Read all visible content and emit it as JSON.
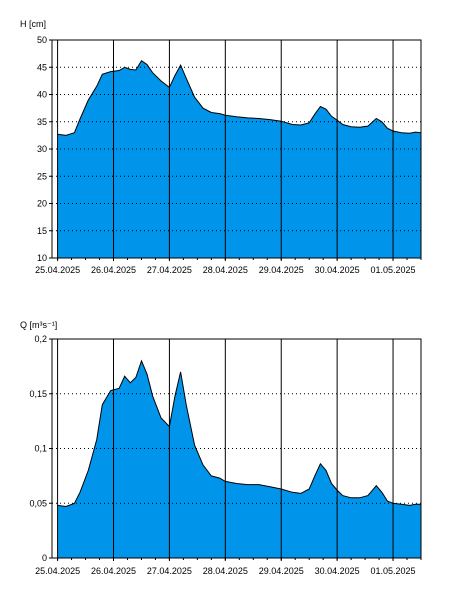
{
  "chart_data": [
    {
      "type": "area",
      "ylabel": "H [cm]",
      "ylim": [
        10,
        50
      ],
      "y_ticks": [
        "10",
        "15",
        "20",
        "25",
        "30",
        "35",
        "40",
        "45",
        "50"
      ],
      "x_tick_labels": [
        "25.04.2025",
        "26.04.2025",
        "27.04.2025",
        "28.04.2025",
        "29.04.2025",
        "30.04.2025",
        "01.05.2025"
      ],
      "x_range_days": [
        24.9,
        31.5
      ],
      "grid": "x solid, y dotted",
      "fill_color": "#0095EA",
      "points": [
        [
          25.0,
          32.7
        ],
        [
          25.15,
          32.5
        ],
        [
          25.3,
          33.0
        ],
        [
          25.4,
          35.5
        ],
        [
          25.55,
          39
        ],
        [
          25.7,
          41.5
        ],
        [
          25.8,
          43.7
        ],
        [
          25.95,
          44.2
        ],
        [
          26.1,
          44.4
        ],
        [
          26.2,
          45
        ],
        [
          26.3,
          44.6
        ],
        [
          26.4,
          44.5
        ],
        [
          26.5,
          46.2
        ],
        [
          26.6,
          45.5
        ],
        [
          26.7,
          44
        ],
        [
          26.85,
          42.5
        ],
        [
          27.0,
          41.3
        ],
        [
          27.1,
          43.5
        ],
        [
          27.2,
          45.4
        ],
        [
          27.3,
          43
        ],
        [
          27.45,
          39.5
        ],
        [
          27.6,
          37.5
        ],
        [
          27.75,
          36.7
        ],
        [
          27.9,
          36.5
        ],
        [
          28.0,
          36.2
        ],
        [
          28.2,
          35.9
        ],
        [
          28.4,
          35.7
        ],
        [
          28.6,
          35.6
        ],
        [
          28.8,
          35.4
        ],
        [
          29.0,
          35.1
        ],
        [
          29.2,
          34.5
        ],
        [
          29.35,
          34.4
        ],
        [
          29.5,
          34.8
        ],
        [
          29.6,
          36.4
        ],
        [
          29.7,
          37.8
        ],
        [
          29.8,
          37.3
        ],
        [
          29.9,
          36
        ],
        [
          30.0,
          35.3
        ],
        [
          30.1,
          34.5
        ],
        [
          30.25,
          34.1
        ],
        [
          30.4,
          34.0
        ],
        [
          30.55,
          34.2
        ],
        [
          30.7,
          35.6
        ],
        [
          30.8,
          35.0
        ],
        [
          30.9,
          33.8
        ],
        [
          31.0,
          33.3
        ],
        [
          31.15,
          33.0
        ],
        [
          31.3,
          32.9
        ],
        [
          31.4,
          33.1
        ],
        [
          31.5,
          33.0
        ]
      ]
    },
    {
      "type": "area",
      "ylabel": "Q [m³s⁻¹]",
      "ylim": [
        0,
        0.2
      ],
      "y_ticks": [
        "0",
        "0,05",
        "0,1",
        "0,15",
        "0,2"
      ],
      "x_tick_labels": [
        "25.04.2025",
        "26.04.2025",
        "27.04.2025",
        "28.04.2025",
        "29.04.2025",
        "30.04.2025",
        "01.05.2025"
      ],
      "x_range_days": [
        24.9,
        31.5
      ],
      "grid": "x solid, y dotted",
      "fill_color": "#0095EA",
      "points": [
        [
          25.0,
          0.048
        ],
        [
          25.15,
          0.047
        ],
        [
          25.3,
          0.05
        ],
        [
          25.4,
          0.06
        ],
        [
          25.55,
          0.08
        ],
        [
          25.7,
          0.108
        ],
        [
          25.8,
          0.14
        ],
        [
          25.95,
          0.153
        ],
        [
          26.1,
          0.155
        ],
        [
          26.2,
          0.166
        ],
        [
          26.3,
          0.16
        ],
        [
          26.4,
          0.165
        ],
        [
          26.5,
          0.18
        ],
        [
          26.6,
          0.168
        ],
        [
          26.7,
          0.148
        ],
        [
          26.85,
          0.128
        ],
        [
          27.0,
          0.12
        ],
        [
          27.1,
          0.148
        ],
        [
          27.2,
          0.17
        ],
        [
          27.3,
          0.14
        ],
        [
          27.45,
          0.103
        ],
        [
          27.6,
          0.085
        ],
        [
          27.75,
          0.075
        ],
        [
          27.9,
          0.073
        ],
        [
          28.0,
          0.07
        ],
        [
          28.2,
          0.068
        ],
        [
          28.4,
          0.067
        ],
        [
          28.6,
          0.067
        ],
        [
          28.8,
          0.065
        ],
        [
          29.0,
          0.063
        ],
        [
          29.2,
          0.06
        ],
        [
          29.35,
          0.059
        ],
        [
          29.5,
          0.063
        ],
        [
          29.6,
          0.075
        ],
        [
          29.7,
          0.086
        ],
        [
          29.8,
          0.08
        ],
        [
          29.9,
          0.068
        ],
        [
          30.0,
          0.062
        ],
        [
          30.1,
          0.057
        ],
        [
          30.25,
          0.055
        ],
        [
          30.4,
          0.055
        ],
        [
          30.55,
          0.057
        ],
        [
          30.7,
          0.066
        ],
        [
          30.8,
          0.06
        ],
        [
          30.9,
          0.052
        ],
        [
          31.0,
          0.05
        ],
        [
          31.15,
          0.049
        ],
        [
          31.3,
          0.048
        ],
        [
          31.4,
          0.049
        ],
        [
          31.5,
          0.049
        ]
      ]
    }
  ]
}
